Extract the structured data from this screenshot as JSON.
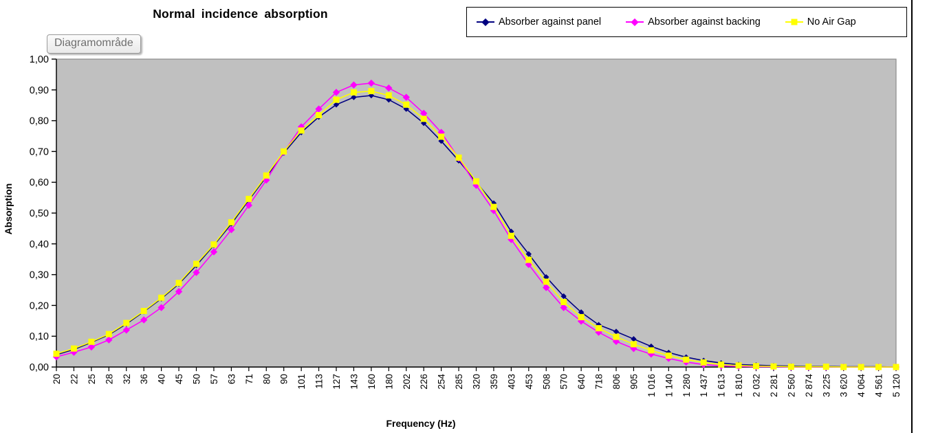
{
  "tooltip": {
    "label": "Diagramområde"
  },
  "chart_data": {
    "type": "line",
    "title": "Normal incidence absorption",
    "xlabel": "Frequency (Hz)",
    "ylabel": "Absorption",
    "ylim": [
      0.0,
      1.0
    ],
    "ytick_labels": [
      "0,00",
      "0,10",
      "0,20",
      "0,30",
      "0,40",
      "0,50",
      "0,60",
      "0,70",
      "0,80",
      "0,90",
      "1,00"
    ],
    "grid": false,
    "legend_position": "top-right",
    "plot_bg": "#C0C0C0",
    "plot_border": "#8C8C8C",
    "axis_color": "#000000",
    "categories": [
      "20",
      "22",
      "25",
      "28",
      "32",
      "36",
      "40",
      "45",
      "50",
      "57",
      "63",
      "71",
      "80",
      "90",
      "101",
      "113",
      "127",
      "143",
      "160",
      "180",
      "202",
      "226",
      "254",
      "285",
      "320",
      "359",
      "403",
      "453",
      "508",
      "570",
      "640",
      "718",
      "806",
      "905",
      "1 016",
      "1 140",
      "1 280",
      "1 437",
      "1 613",
      "1 810",
      "2 032",
      "2 281",
      "2 560",
      "2 874",
      "3 225",
      "3 620",
      "4 064",
      "4 561",
      "5 120"
    ],
    "series": [
      {
        "name": "Absorber against panel",
        "color": "#000080",
        "marker": "diamond",
        "marker_size": 4.2,
        "values": [
          0.04,
          0.057,
          0.08,
          0.105,
          0.14,
          0.18,
          0.222,
          0.27,
          0.33,
          0.395,
          0.465,
          0.542,
          0.618,
          0.695,
          0.762,
          0.812,
          0.852,
          0.876,
          0.882,
          0.868,
          0.838,
          0.792,
          0.734,
          0.67,
          0.6,
          0.532,
          0.44,
          0.367,
          0.292,
          0.23,
          0.178,
          0.137,
          0.115,
          0.091,
          0.067,
          0.047,
          0.032,
          0.021,
          0.013,
          0.008,
          0.006,
          0.004,
          0.003,
          0.002,
          0.002,
          0.001,
          0.001,
          0.001,
          0.0
        ]
      },
      {
        "name": "Absorber against backing",
        "color": "#FF00FF",
        "marker": "diamond",
        "marker_size": 5.2,
        "values": [
          0.033,
          0.048,
          0.065,
          0.088,
          0.12,
          0.153,
          0.193,
          0.245,
          0.307,
          0.374,
          0.446,
          0.525,
          0.607,
          0.698,
          0.78,
          0.838,
          0.892,
          0.916,
          0.922,
          0.906,
          0.876,
          0.824,
          0.762,
          0.678,
          0.59,
          0.508,
          0.414,
          0.333,
          0.258,
          0.193,
          0.149,
          0.113,
          0.083,
          0.06,
          0.042,
          0.028,
          0.016,
          0.008,
          0.004,
          0.002,
          0.001,
          0.001,
          0.0,
          0.0,
          0.0,
          0.0,
          0.0,
          0.0,
          0.0
        ]
      },
      {
        "name": "No Air Gap",
        "color": "#FFFF00",
        "marker": "square",
        "marker_size": 4.5,
        "values": [
          0.043,
          0.06,
          0.082,
          0.107,
          0.143,
          0.182,
          0.225,
          0.273,
          0.335,
          0.398,
          0.47,
          0.546,
          0.622,
          0.7,
          0.768,
          0.818,
          0.868,
          0.892,
          0.896,
          0.882,
          0.852,
          0.806,
          0.748,
          0.68,
          0.603,
          0.52,
          0.426,
          0.348,
          0.277,
          0.211,
          0.162,
          0.126,
          0.098,
          0.074,
          0.054,
          0.037,
          0.024,
          0.015,
          0.008,
          0.005,
          0.003,
          0.002,
          0.001,
          0.001,
          0.001,
          0.0,
          0.0,
          0.0,
          0.0
        ]
      }
    ]
  }
}
